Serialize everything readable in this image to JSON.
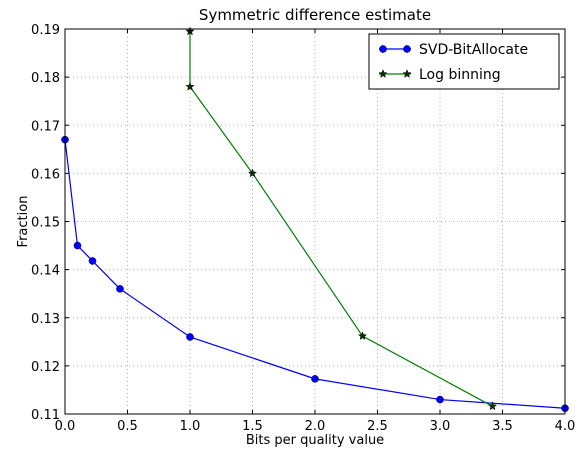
{
  "chart_data": {
    "type": "line",
    "title": "Symmetric difference estimate",
    "xlabel": "Bits per quality value",
    "ylabel": "Fraction",
    "xlim": [
      0.0,
      4.0
    ],
    "ylim": [
      0.11,
      0.19
    ],
    "xticks": [
      "0.0",
      "0.5",
      "1.0",
      "1.5",
      "2.0",
      "2.5",
      "3.0",
      "3.5",
      "4.0"
    ],
    "yticks": [
      "0.11",
      "0.12",
      "0.13",
      "0.14",
      "0.15",
      "0.16",
      "0.17",
      "0.18",
      "0.19"
    ],
    "grid": true,
    "legend_position": "top-right",
    "series": [
      {
        "name": "SVD-BitAllocate",
        "color": "#0000ff",
        "marker": "circle",
        "x": [
          0.0,
          0.1,
          0.22,
          0.44,
          1.0,
          2.0,
          3.0,
          4.0
        ],
        "y": [
          0.167,
          0.145,
          0.1418,
          0.136,
          0.126,
          0.1173,
          0.113,
          0.1112
        ]
      },
      {
        "name": "Log binning",
        "color": "#008000",
        "marker": "star",
        "x": [
          1.0,
          1.0,
          1.5,
          2.38,
          3.42
        ],
        "y": [
          0.1895,
          0.178,
          0.16,
          0.1262,
          0.1116
        ]
      }
    ]
  }
}
